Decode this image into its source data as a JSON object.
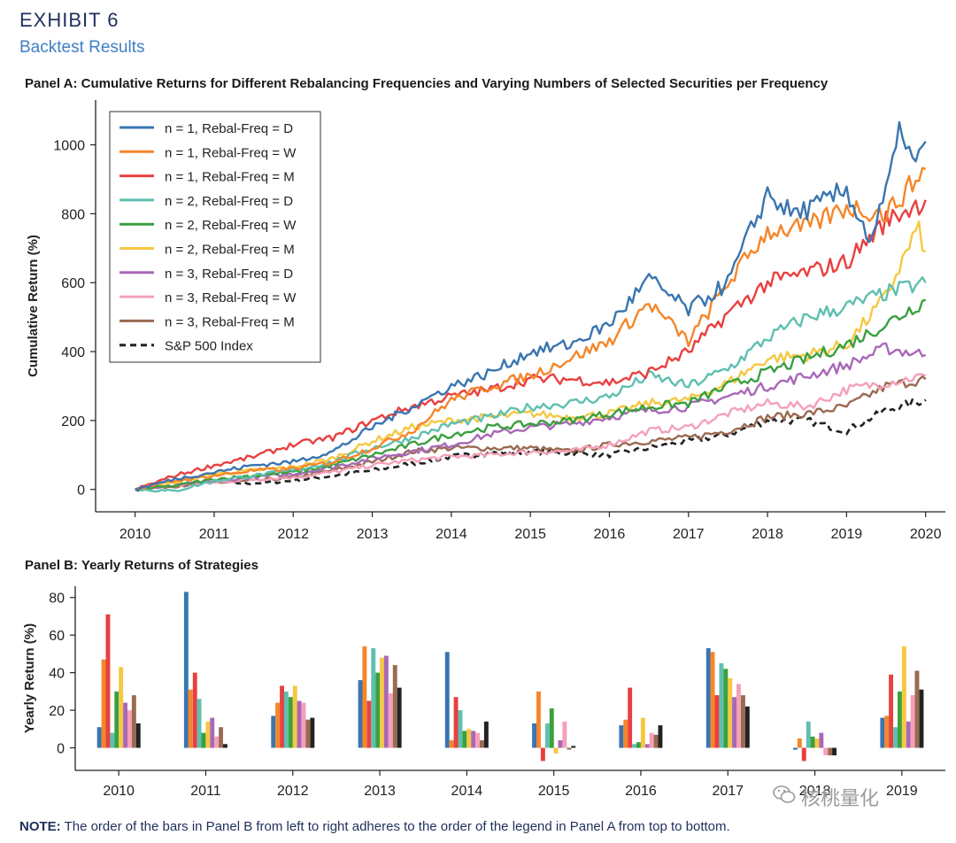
{
  "header": {
    "exhibit": "EXHIBIT 6",
    "subtitle": "Backtest Results"
  },
  "note": {
    "label": "NOTE:",
    "text": "The order of the bars in Panel B from left to right adheres to the order of the legend in Panel A from top to bottom."
  },
  "watermark": {
    "text": "核桃量化",
    "icon": "wechat-icon"
  },
  "chart_data": [
    {
      "type": "line",
      "title": "Panel A: Cumulative Returns for Different Rebalancing Frequencies and Varying Numbers of Selected Securities per Frequency",
      "xlabel": "",
      "ylabel": "Cumulative Return (%)",
      "xlim": [
        2009.5,
        2020.25
      ],
      "ylim": [
        -65,
        1130
      ],
      "xticks": [
        2010,
        2011,
        2012,
        2013,
        2014,
        2015,
        2016,
        2017,
        2018,
        2019,
        2020
      ],
      "yticks": [
        0,
        200,
        400,
        600,
        800,
        1000
      ],
      "legend_position": "top-left",
      "series": [
        {
          "name": "n = 1, Rebal-Freq = D",
          "color": "#3a75b0",
          "dash": false,
          "x": [
            2010,
            2010.5,
            2011,
            2011.5,
            2012,
            2012.5,
            2013,
            2013.5,
            2014,
            2014.5,
            2015,
            2015.5,
            2016,
            2016.5,
            2017,
            2017.5,
            2018,
            2018.3,
            2018.6,
            2019,
            2019.3,
            2019.5,
            2019.7,
            2019.85,
            2020
          ],
          "y": [
            0,
            30,
            50,
            70,
            80,
            110,
            180,
            240,
            300,
            340,
            400,
            420,
            480,
            610,
            520,
            600,
            860,
            800,
            820,
            870,
            720,
            860,
            1060,
            930,
            1010
          ]
        },
        {
          "name": "n = 1, Rebal-Freq = W",
          "color": "#f5862a",
          "dash": false,
          "x": [
            2010,
            2010.5,
            2011,
            2011.5,
            2012,
            2012.5,
            2013,
            2013.5,
            2014,
            2014.5,
            2015,
            2015.5,
            2016,
            2016.5,
            2017,
            2017.5,
            2018,
            2018.5,
            2019,
            2019.5,
            2020
          ],
          "y": [
            0,
            25,
            40,
            55,
            60,
            80,
            120,
            170,
            260,
            300,
            330,
            380,
            430,
            540,
            430,
            600,
            750,
            760,
            820,
            800,
            930
          ]
        },
        {
          "name": "n = 1, Rebal-Freq = M",
          "color": "#e84040",
          "dash": false,
          "x": [
            2010,
            2010.5,
            2011,
            2011.5,
            2012,
            2012.5,
            2013,
            2013.5,
            2014,
            2014.5,
            2015,
            2015.5,
            2016,
            2016.5,
            2017,
            2017.5,
            2018,
            2018.5,
            2019,
            2019.5,
            2020
          ],
          "y": [
            0,
            40,
            70,
            95,
            130,
            150,
            200,
            240,
            270,
            290,
            320,
            320,
            310,
            340,
            400,
            510,
            600,
            630,
            660,
            780,
            840
          ]
        },
        {
          "name": "n = 2, Rebal-Freq = D",
          "color": "#5fbfb0",
          "dash": false,
          "x": [
            2010,
            2010.5,
            2011,
            2011.5,
            2012,
            2012.5,
            2013,
            2013.5,
            2014,
            2014.5,
            2015,
            2015.5,
            2016,
            2016.5,
            2017,
            2017.5,
            2018,
            2018.5,
            2019,
            2019.5,
            2020
          ],
          "y": [
            0,
            -5,
            25,
            40,
            55,
            80,
            120,
            150,
            190,
            210,
            240,
            250,
            270,
            330,
            300,
            350,
            440,
            500,
            530,
            570,
            600
          ]
        },
        {
          "name": "n = 2, Rebal-Freq = W",
          "color": "#3aa040",
          "dash": false,
          "x": [
            2010,
            2010.5,
            2011,
            2011.5,
            2012,
            2012.5,
            2013,
            2013.5,
            2014,
            2014.5,
            2015,
            2015.5,
            2016,
            2016.5,
            2017,
            2017.5,
            2018,
            2018.5,
            2019,
            2019.5,
            2020
          ],
          "y": [
            0,
            10,
            30,
            40,
            50,
            70,
            100,
            130,
            160,
            180,
            190,
            200,
            220,
            240,
            250,
            300,
            340,
            380,
            420,
            480,
            550
          ]
        },
        {
          "name": "n = 2, Rebal-Freq = M",
          "color": "#f5c842",
          "dash": false,
          "x": [
            2010,
            2010.5,
            2011,
            2011.5,
            2012,
            2012.5,
            2013,
            2013.5,
            2014,
            2014.5,
            2015,
            2015.5,
            2016,
            2016.5,
            2017,
            2017.5,
            2018,
            2018.5,
            2019,
            2019.5,
            2019.9,
            2020
          ],
          "y": [
            0,
            20,
            45,
            55,
            65,
            90,
            140,
            180,
            200,
            210,
            220,
            210,
            220,
            250,
            260,
            310,
            380,
            390,
            420,
            560,
            760,
            690
          ]
        },
        {
          "name": "n = 3, Rebal-Freq = D",
          "color": "#a868b8",
          "dash": false,
          "x": [
            2010,
            2010.5,
            2011,
            2011.5,
            2012,
            2012.5,
            2013,
            2013.5,
            2014,
            2014.5,
            2015,
            2015.5,
            2016,
            2016.5,
            2017,
            2017.5,
            2018,
            2018.5,
            2019,
            2019.5,
            2020
          ],
          "y": [
            0,
            10,
            25,
            35,
            45,
            65,
            90,
            110,
            130,
            160,
            180,
            190,
            210,
            230,
            240,
            270,
            300,
            330,
            360,
            410,
            390
          ]
        },
        {
          "name": "n = 3, Rebal-Freq = W",
          "color": "#f5a0b8",
          "dash": false,
          "x": [
            2010,
            2010.5,
            2011,
            2011.5,
            2012,
            2012.5,
            2013,
            2013.5,
            2014,
            2014.5,
            2015,
            2015.5,
            2016,
            2016.5,
            2017,
            2017.5,
            2018,
            2018.5,
            2019,
            2019.5,
            2020
          ],
          "y": [
            0,
            10,
            20,
            30,
            35,
            50,
            70,
            85,
            95,
            100,
            110,
            110,
            130,
            170,
            180,
            220,
            250,
            240,
            290,
            310,
            330
          ]
        },
        {
          "name": "n = 3, Rebal-Freq = M",
          "color": "#9a6a52",
          "dash": false,
          "x": [
            2010,
            2010.5,
            2011,
            2011.5,
            2012,
            2012.5,
            2013,
            2013.5,
            2014,
            2014.5,
            2015,
            2015.5,
            2016,
            2016.5,
            2017,
            2017.5,
            2018,
            2018.5,
            2019,
            2019.5,
            2020
          ],
          "y": [
            0,
            10,
            20,
            25,
            35,
            55,
            80,
            110,
            120,
            120,
            120,
            110,
            130,
            140,
            150,
            170,
            210,
            220,
            240,
            300,
            320
          ]
        },
        {
          "name": "S&P 500 Index",
          "color": "#222222",
          "dash": true,
          "x": [
            2010,
            2010.5,
            2011,
            2011.5,
            2012,
            2012.5,
            2013,
            2013.5,
            2014,
            2014.5,
            2015,
            2015.5,
            2016,
            2016.5,
            2017,
            2017.5,
            2018,
            2018.5,
            2019,
            2019.5,
            2020
          ],
          "y": [
            0,
            10,
            20,
            18,
            25,
            40,
            55,
            75,
            95,
            105,
            110,
            105,
            100,
            120,
            140,
            160,
            200,
            200,
            170,
            230,
            260
          ]
        }
      ]
    },
    {
      "type": "bar",
      "title": "Panel B: Yearly Returns of Strategies",
      "xlabel": "",
      "ylabel": "Yearly Return (%)",
      "ylim": [
        -12,
        86
      ],
      "yticks": [
        0,
        20,
        40,
        60,
        80
      ],
      "categories": [
        "2010",
        "2011",
        "2012",
        "2013",
        "2014",
        "2015",
        "2016",
        "2017",
        "2018",
        "2019"
      ],
      "series": [
        {
          "name": "n = 1, Rebal-Freq = D",
          "color": "#3a75b0",
          "values": [
            11,
            83,
            17,
            36,
            51,
            13,
            12,
            53,
            -1,
            16
          ]
        },
        {
          "name": "n = 1, Rebal-Freq = W",
          "color": "#f5862a",
          "values": [
            47,
            31,
            24,
            54,
            4,
            30,
            15,
            51,
            5,
            17
          ]
        },
        {
          "name": "n = 1, Rebal-Freq = M",
          "color": "#e84040",
          "values": [
            71,
            40,
            33,
            25,
            27,
            -7,
            32,
            28,
            -7,
            39
          ]
        },
        {
          "name": "n = 2, Rebal-Freq = D",
          "color": "#5fbfb0",
          "values": [
            8,
            26,
            30,
            53,
            20,
            13,
            2,
            45,
            14,
            11
          ]
        },
        {
          "name": "n = 2, Rebal-Freq = W",
          "color": "#3aa040",
          "values": [
            30,
            8,
            27,
            40,
            9,
            21,
            3,
            42,
            6,
            30
          ]
        },
        {
          "name": "n = 2, Rebal-Freq = M",
          "color": "#f5c842",
          "values": [
            43,
            14,
            33,
            48,
            10,
            -3,
            16,
            37,
            5,
            54
          ]
        },
        {
          "name": "n = 3, Rebal-Freq = D",
          "color": "#a868b8",
          "values": [
            24,
            16,
            25,
            49,
            9,
            4,
            2,
            27,
            8,
            14
          ]
        },
        {
          "name": "n = 3, Rebal-Freq = W",
          "color": "#f5a0b8",
          "values": [
            20,
            6,
            24,
            29,
            8,
            14,
            8,
            34,
            -4,
            28
          ]
        },
        {
          "name": "n = 3, Rebal-Freq = M",
          "color": "#9a6a52",
          "values": [
            28,
            11,
            15,
            44,
            4,
            -1,
            7,
            28,
            -4,
            41
          ]
        },
        {
          "name": "S&P 500 Index",
          "color": "#222222",
          "values": [
            13,
            2,
            16,
            32,
            14,
            1,
            12,
            22,
            -4,
            31
          ]
        }
      ]
    }
  ]
}
